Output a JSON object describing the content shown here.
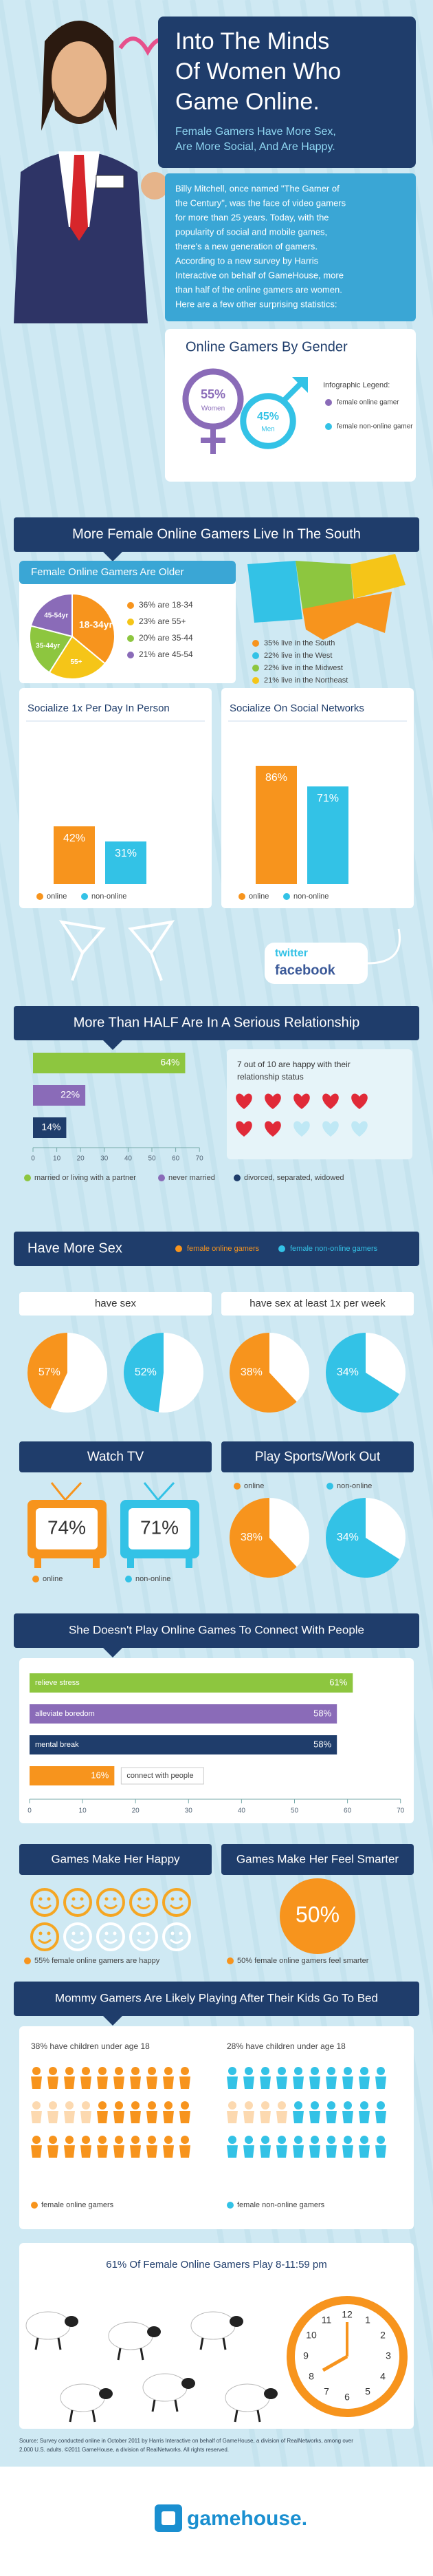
{
  "header": {
    "title_lines": [
      "Into The Minds",
      "Of Women Who",
      "Game Online."
    ],
    "subtitle_lines": [
      "Female Gamers Have More Sex,",
      "Are More Social, And Are Happy."
    ],
    "intro_lines": [
      "Billy Mitchell, once named \"The Gamer of",
      "the Century\", was the face of video gamers",
      "for more than 25 years. Today, with the",
      "popularity of social and mobile games,",
      "there's a new generation of gamers.",
      "According to a new survey by Harris",
      "Interactive on behalf of GameHouse, more",
      "than half of the online gamers are women.",
      "Here are a few other surprising statistics:"
    ]
  },
  "gender": {
    "title": "Online Gamers By Gender",
    "female": {
      "value": 55,
      "label": "55%"
    },
    "female_caption": "Women",
    "male": {
      "value": 45,
      "label": "45%"
    },
    "male_caption": "Men",
    "legend_title": "Infographic Legend:",
    "legend": [
      "female online gamer",
      "female non-online gamer"
    ]
  },
  "south": {
    "banner": "More Female Online Gamers Live In The South",
    "age_title": "Female Online Gamers Are Older",
    "age_slices": [
      {
        "value": 36,
        "label": "18-34yr",
        "legend": "36% are 18-34",
        "color": "#f7941d"
      },
      {
        "value": 23,
        "label": "55+",
        "legend": "23% are 55+",
        "color": "#f5c518"
      },
      {
        "value": 20,
        "label": "35-44yr",
        "legend": "20% are 35-44",
        "color": "#8dc63f"
      },
      {
        "value": 21,
        "label": "45-54yr",
        "legend": "21% are 45-54",
        "color": "#8a6bb8"
      }
    ],
    "regions": [
      {
        "text": "35% live in the South",
        "color": "#f7941d"
      },
      {
        "text": "22% live in the West",
        "color": "#33c2e6"
      },
      {
        "text": "22% live in the Midwest",
        "color": "#8dc63f"
      },
      {
        "text": "21% live in the Northeast",
        "color": "#f5c518"
      }
    ]
  },
  "socialize": {
    "panels": [
      {
        "title": "Socialize 1x Per Day In Person",
        "values": [
          {
            "value": 42,
            "label": "42%"
          },
          {
            "value": 31,
            "label": "31%"
          }
        ]
      },
      {
        "title": "Socialize On Social Networks",
        "values": [
          {
            "value": 86,
            "label": "86%"
          },
          {
            "value": 71,
            "label": "71%"
          }
        ]
      }
    ],
    "legend": [
      "online",
      "non-online"
    ],
    "twitter": "twitter",
    "facebook": "facebook"
  },
  "relationship": {
    "banner": "More Than HALF Are In A Serious Relationship",
    "bars": [
      {
        "value": 64,
        "label": "64%",
        "color": "#8dc63f"
      },
      {
        "value": 22,
        "label": "22%",
        "color": "#8a6bb8"
      },
      {
        "value": 14,
        "label": "14%",
        "color": "#1f3d6b"
      }
    ],
    "ticks": [
      0,
      10,
      20,
      30,
      40,
      50,
      60,
      70
    ],
    "legend": [
      "married or living with a partner",
      "never married",
      "divorced, separated, widowed"
    ],
    "happy_lines": [
      "7 out of 10 are happy with their",
      "relationship status"
    ]
  },
  "sex": {
    "banner": "Have More Sex",
    "legend": [
      "female online gamers",
      "female non-online gamers"
    ],
    "panels": [
      {
        "title": "have sex",
        "values": [
          {
            "value": 57,
            "label": "57%"
          },
          {
            "value": 52,
            "label": "52%"
          }
        ]
      },
      {
        "title": "have sex at least 1x per week",
        "values": [
          {
            "value": 38,
            "label": "38%"
          },
          {
            "value": 34,
            "label": "34%"
          }
        ]
      }
    ]
  },
  "tv": {
    "title": "Watch TV",
    "values": [
      "74%",
      "71%"
    ],
    "legend": [
      "online",
      "non-online"
    ]
  },
  "sports": {
    "title": "Play Sports/Work Out",
    "values": [
      {
        "value": 38,
        "label": "38%"
      },
      {
        "value": 34,
        "label": "34%"
      }
    ],
    "legend": [
      "online",
      "non-online"
    ]
  },
  "connect": {
    "banner": "She Doesn't Play Online Games To Connect With People",
    "bars": [
      {
        "name": "relieve stress",
        "value": 61,
        "label": "61%",
        "color": "#8dc63f"
      },
      {
        "name": "alleviate boredom",
        "value": 58,
        "label": "58%",
        "color": "#8a6bb8"
      },
      {
        "name": "mental break",
        "value": 58,
        "label": "58%",
        "color": "#1f3d6b"
      },
      {
        "name": "connect with people",
        "value": 16,
        "label": "16%",
        "color": "#f7941d"
      }
    ],
    "ticks": [
      0,
      10,
      20,
      30,
      40,
      50,
      60,
      70
    ]
  },
  "happy": {
    "title": "Games Make Her Happy",
    "caption": "55% female online gamers are happy"
  },
  "smarter": {
    "title": "Games Make Her Feel Smarter",
    "value": "50%",
    "caption": "50% female online gamers feel smarter"
  },
  "mommy": {
    "banner": "Mommy Gamers Are Likely Playing After Their Kids Go To Bed",
    "groups": [
      {
        "text": "38% have children under age 18",
        "legend": "female online gamers"
      },
      {
        "text": "28% have children under age 18",
        "legend": "female non-online gamers"
      }
    ]
  },
  "time": {
    "title": "61% Of Female Online Gamers Play 8-11:59 pm",
    "clock_numbers": [
      "12",
      "1",
      "2",
      "3",
      "4",
      "5",
      "6",
      "7",
      "8",
      "9",
      "10",
      "11"
    ]
  },
  "footer": {
    "source_lines": [
      "Source: Survey conducted online in October 2011 by Harris Interactive on behalf of GameHouse, a division of RealNetworks, among over",
      "2,000 U.S. adults. ©2011 GameHouse, a division of RealNetworks. All rights reserved."
    ],
    "logo": "gamehouse."
  }
}
